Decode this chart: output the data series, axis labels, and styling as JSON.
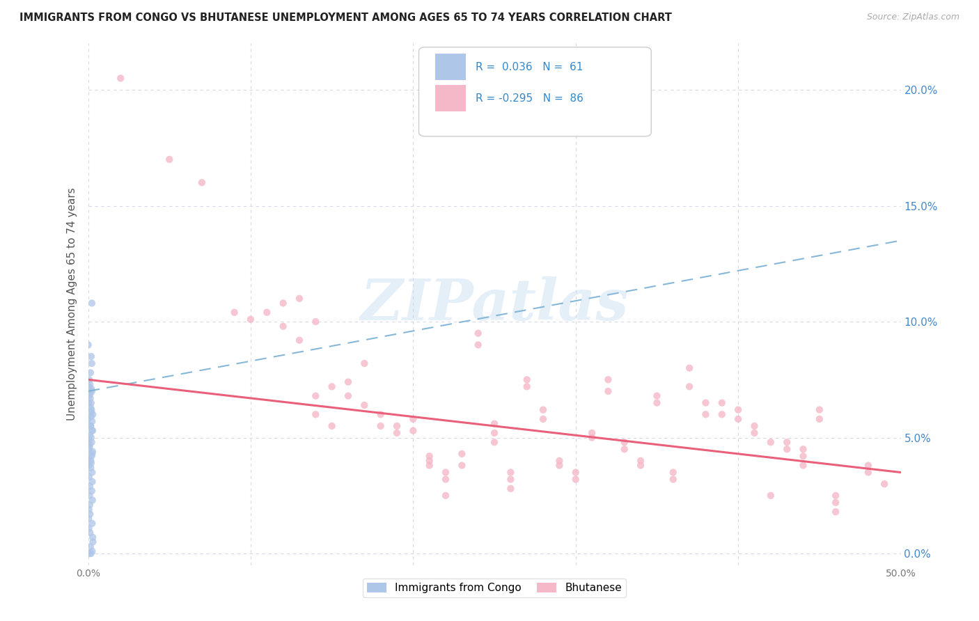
{
  "title": "IMMIGRANTS FROM CONGO VS BHUTANESE UNEMPLOYMENT AMONG AGES 65 TO 74 YEARS CORRELATION CHART",
  "source": "Source: ZipAtlas.com",
  "ylabel": "Unemployment Among Ages 65 to 74 years",
  "xlim": [
    0,
    0.5
  ],
  "ylim": [
    -0.005,
    0.22
  ],
  "xticks": [
    0.0,
    0.1,
    0.2,
    0.3,
    0.4,
    0.5
  ],
  "xtick_labels": [
    "0.0%",
    "",
    "",
    "",
    "",
    "50.0%"
  ],
  "yticks": [
    0.0,
    0.05,
    0.1,
    0.15,
    0.2
  ],
  "legend_entries": [
    {
      "label": "Immigrants from Congo",
      "color": "#aec6e8",
      "R": "0.036",
      "N": "61"
    },
    {
      "label": "Bhutanese",
      "color": "#f4b8c8",
      "R": "-0.295",
      "N": "86"
    }
  ],
  "watermark": "ZIPatlas",
  "congo_color": "#aec6e8",
  "bhutanese_color": "#f4b8c8",
  "congo_line_color": "#7ab0d4",
  "bhutanese_line_color": "#e8607a",
  "background_color": "#ffffff",
  "grid_color": "#d8d8e8",
  "congo_x": [
    0.0,
    0.0,
    0.0,
    0.0,
    0.0,
    0.0,
    0.0,
    0.0,
    0.0,
    0.0,
    0.0,
    0.0,
    0.0,
    0.0,
    0.0,
    0.0,
    0.0,
    0.0,
    0.0,
    0.0,
    0.0,
    0.0,
    0.0,
    0.0,
    0.0,
    0.0,
    0.0,
    0.0,
    0.0,
    0.0,
    0.0,
    0.0,
    0.0,
    0.0,
    0.0,
    0.0,
    0.0,
    0.0,
    0.0,
    0.0,
    0.0,
    0.0,
    0.0,
    0.0,
    0.0,
    0.0,
    0.0,
    0.0,
    0.0,
    0.0,
    0.0,
    0.0,
    0.0,
    0.0,
    0.0,
    0.0,
    0.0,
    0.0,
    0.0,
    0.0,
    0.0
  ],
  "congo_y": [
    0.108,
    0.09,
    0.085,
    0.082,
    0.078,
    0.075,
    0.072,
    0.07,
    0.068,
    0.065,
    0.062,
    0.06,
    0.058,
    0.055,
    0.053,
    0.05,
    0.048,
    0.046,
    0.044,
    0.042,
    0.04,
    0.038,
    0.073,
    0.071,
    0.069,
    0.067,
    0.065,
    0.063,
    0.061,
    0.059,
    0.057,
    0.055,
    0.053,
    0.051,
    0.049,
    0.047,
    0.045,
    0.043,
    0.041,
    0.039,
    0.037,
    0.035,
    0.033,
    0.031,
    0.029,
    0.027,
    0.025,
    0.023,
    0.021,
    0.019,
    0.017,
    0.015,
    0.013,
    0.011,
    0.009,
    0.007,
    0.005,
    0.003,
    0.001,
    0.0,
    0.0
  ],
  "bhutanese_x": [
    0.02,
    0.05,
    0.07,
    0.09,
    0.1,
    0.11,
    0.12,
    0.12,
    0.13,
    0.13,
    0.14,
    0.14,
    0.14,
    0.15,
    0.15,
    0.16,
    0.16,
    0.17,
    0.17,
    0.18,
    0.18,
    0.19,
    0.19,
    0.2,
    0.2,
    0.21,
    0.21,
    0.21,
    0.22,
    0.22,
    0.22,
    0.23,
    0.23,
    0.24,
    0.24,
    0.25,
    0.25,
    0.25,
    0.26,
    0.26,
    0.26,
    0.27,
    0.27,
    0.28,
    0.28,
    0.29,
    0.29,
    0.3,
    0.3,
    0.31,
    0.31,
    0.32,
    0.32,
    0.33,
    0.33,
    0.34,
    0.34,
    0.35,
    0.35,
    0.36,
    0.36,
    0.37,
    0.37,
    0.38,
    0.38,
    0.39,
    0.39,
    0.4,
    0.4,
    0.41,
    0.41,
    0.42,
    0.42,
    0.43,
    0.43,
    0.44,
    0.44,
    0.44,
    0.45,
    0.45,
    0.46,
    0.46,
    0.46,
    0.48,
    0.48,
    0.49
  ],
  "bhutanese_y": [
    0.205,
    0.17,
    0.16,
    0.104,
    0.101,
    0.104,
    0.098,
    0.108,
    0.092,
    0.11,
    0.1,
    0.068,
    0.06,
    0.055,
    0.072,
    0.074,
    0.068,
    0.082,
    0.064,
    0.06,
    0.055,
    0.052,
    0.055,
    0.058,
    0.053,
    0.04,
    0.038,
    0.042,
    0.035,
    0.025,
    0.032,
    0.043,
    0.038,
    0.095,
    0.09,
    0.056,
    0.052,
    0.048,
    0.035,
    0.032,
    0.028,
    0.075,
    0.072,
    0.062,
    0.058,
    0.04,
    0.038,
    0.035,
    0.032,
    0.052,
    0.05,
    0.07,
    0.075,
    0.048,
    0.045,
    0.04,
    0.038,
    0.068,
    0.065,
    0.035,
    0.032,
    0.08,
    0.072,
    0.065,
    0.06,
    0.065,
    0.06,
    0.062,
    0.058,
    0.055,
    0.052,
    0.048,
    0.025,
    0.048,
    0.045,
    0.045,
    0.042,
    0.038,
    0.062,
    0.058,
    0.025,
    0.022,
    0.018,
    0.038,
    0.035,
    0.03
  ],
  "congo_trend": [
    0.0,
    0.5,
    0.07,
    0.135
  ],
  "bhutanese_trend": [
    0.0,
    0.5,
    0.075,
    0.035
  ]
}
